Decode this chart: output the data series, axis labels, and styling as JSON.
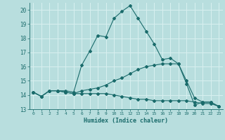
{
  "xlabel": "Humidex (Indice chaleur)",
  "xlim": [
    -0.5,
    23.5
  ],
  "ylim": [
    13,
    20.5
  ],
  "yticks": [
    13,
    14,
    15,
    16,
    17,
    18,
    19,
    20
  ],
  "xticks": [
    0,
    1,
    2,
    3,
    4,
    5,
    6,
    7,
    8,
    9,
    10,
    11,
    12,
    13,
    14,
    15,
    16,
    17,
    18,
    19,
    20,
    21,
    22,
    23
  ],
  "background_color": "#b8dede",
  "grid_color": "#d8f0f0",
  "line_color": "#1a6b6b",
  "lines": [
    {
      "x": [
        0,
        1,
        2,
        3,
        4,
        5,
        6,
        7,
        8,
        9,
        10,
        11,
        12,
        13,
        14,
        15,
        16,
        17,
        18,
        19,
        20,
        21,
        22,
        23
      ],
      "y": [
        14.2,
        13.9,
        14.3,
        14.3,
        14.3,
        14.2,
        16.1,
        17.1,
        18.2,
        18.1,
        19.4,
        19.9,
        20.3,
        19.4,
        18.5,
        17.6,
        16.5,
        16.6,
        16.2,
        14.8,
        13.3,
        13.5,
        13.5,
        13.2
      ]
    },
    {
      "x": [
        0,
        1,
        2,
        3,
        4,
        5,
        6,
        7,
        8,
        9,
        10,
        11,
        12,
        13,
        14,
        15,
        16,
        17,
        18,
        19,
        20,
        21,
        22,
        23
      ],
      "y": [
        14.2,
        13.9,
        14.3,
        14.3,
        14.2,
        14.1,
        14.3,
        14.4,
        14.5,
        14.7,
        15.0,
        15.2,
        15.5,
        15.8,
        16.0,
        16.1,
        16.2,
        16.2,
        16.2,
        15.0,
        13.8,
        13.5,
        13.5,
        13.2
      ]
    },
    {
      "x": [
        0,
        1,
        2,
        3,
        4,
        5,
        6,
        7,
        8,
        9,
        10,
        11,
        12,
        13,
        14,
        15,
        16,
        17,
        18,
        19,
        20,
        21,
        22,
        23
      ],
      "y": [
        14.2,
        13.9,
        14.3,
        14.3,
        14.2,
        14.1,
        14.1,
        14.1,
        14.1,
        14.1,
        14.0,
        13.9,
        13.8,
        13.7,
        13.7,
        13.6,
        13.6,
        13.6,
        13.6,
        13.6,
        13.5,
        13.4,
        13.4,
        13.2
      ]
    }
  ]
}
